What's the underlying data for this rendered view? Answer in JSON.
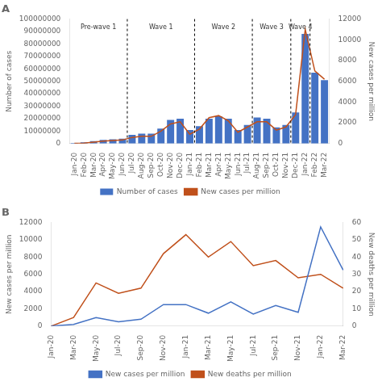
{
  "chart_data": [
    {
      "type": "bar",
      "title": "A",
      "categories": [
        "Jan-20",
        "Feb-20",
        "Mar-20",
        "Apr-20",
        "May-20",
        "Jun-20",
        "Jul-20",
        "Aug-20",
        "Sep-20",
        "Oct-20",
        "Nov-20",
        "Dec-20",
        "Jan-21",
        "Feb-21",
        "Mar-21",
        "Apr-21",
        "May-21",
        "Jun-21",
        "Jul-21",
        "Aug-21",
        "Sep-21",
        "Oct-21",
        "Nov-21",
        "Dec-21",
        "Jan-22",
        "Feb-22",
        "Mar-22"
      ],
      "series": [
        {
          "name": "Number of cases",
          "type": "bar",
          "color": "#4472C4",
          "values": [
            500000,
            1000000,
            2000000,
            3000000,
            3500000,
            4000000,
            7000000,
            8000000,
            8000000,
            12000000,
            19000000,
            20000000,
            11000000,
            14000000,
            20000000,
            22000000,
            20000000,
            11000000,
            15000000,
            21000000,
            20000000,
            13000000,
            15000000,
            25000000,
            88000000,
            57000000,
            51000000
          ]
        },
        {
          "name": "New cases per million",
          "type": "line",
          "color": "#C0501B",
          "axis": "y2",
          "values": [
            20,
            50,
            150,
            250,
            300,
            350,
            600,
            700,
            700,
            1200,
            1900,
            2100,
            900,
            1400,
            2500,
            2700,
            2200,
            1100,
            1600,
            2100,
            2100,
            1300,
            1600,
            2800,
            11000,
            7000,
            6200
          ]
        }
      ],
      "ylabel": "Number of cases",
      "y2label": "New cases per million",
      "ylim": [
        0,
        100000000
      ],
      "yticks": [
        0,
        10000000,
        20000000,
        30000000,
        40000000,
        50000000,
        60000000,
        70000000,
        80000000,
        90000000,
        100000000
      ],
      "y2lim": [
        0,
        12000
      ],
      "y2ticks": [
        0,
        2000,
        4000,
        6000,
        8000,
        10000,
        12000
      ],
      "vlines": [
        5.5,
        12.5,
        18.5,
        22.5,
        24.5
      ],
      "annotations": [
        {
          "text": "Pre-wave 1",
          "x": 2.5,
          "y": 96000000
        },
        {
          "text": "Wave 1",
          "x": 9.0,
          "y": 96000000
        },
        {
          "text": "Wave 2",
          "x": 15.5,
          "y": 96000000
        },
        {
          "text": "Wave 3",
          "x": 20.5,
          "y": 96000000
        },
        {
          "text": "Wave 4",
          "x": 23.5,
          "y": 96000000
        }
      ],
      "grid": false,
      "legend": "bottom"
    },
    {
      "type": "line",
      "title": "B",
      "categories": [
        "Jan-20",
        "Mar-20",
        "May-20",
        "Jul-20",
        "Sep-20",
        "Nov-20",
        "Jan-21",
        "Mar-21",
        "May-21",
        "Jul-21",
        "Sep-21",
        "Nov-21",
        "Jan-22",
        "Mar-22"
      ],
      "series": [
        {
          "name": "New cases per million",
          "color": "#4472C4",
          "values": [
            0,
            200,
            1000,
            500,
            800,
            2500,
            2500,
            1500,
            2800,
            1400,
            2400,
            1600,
            11500,
            6500
          ]
        },
        {
          "name": "New deaths per million",
          "color": "#C0501B",
          "axis": "y2",
          "values": [
            0,
            5,
            25,
            19,
            22,
            42,
            53,
            40,
            49,
            35,
            38,
            28,
            30,
            22
          ]
        }
      ],
      "ylabel": "New cases per million",
      "y2label": "New deaths per million",
      "ylim": [
        0,
        12000
      ],
      "yticks": [
        0,
        2000,
        4000,
        6000,
        8000,
        10000,
        12000
      ],
      "y2lim": [
        0,
        60
      ],
      "y2ticks": [
        0,
        10,
        20,
        30,
        40,
        50,
        60
      ],
      "grid": false,
      "legend": "bottom"
    }
  ]
}
